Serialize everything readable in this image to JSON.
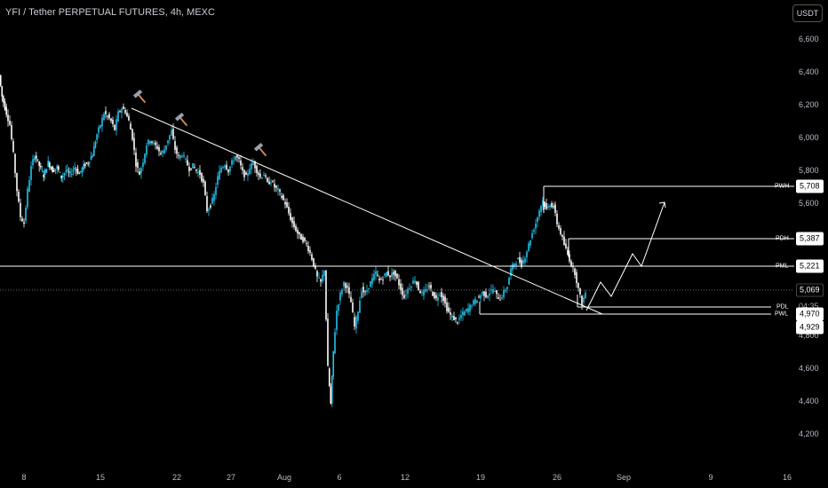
{
  "header": {
    "title": "YFI / Tether PERPETUAL FUTURES, 4h, MEXC",
    "currency": "USDT"
  },
  "y_axis": {
    "ticks": [
      "6,600",
      "6,400",
      "6,200",
      "6,000",
      "5,800",
      "5,600",
      "4,800",
      "4,600",
      "4,400",
      "4,200"
    ]
  },
  "x_axis": {
    "ticks": [
      "8",
      "15",
      "22",
      "27",
      "Aug",
      "6",
      "12",
      "19",
      "26",
      "Sep",
      "9",
      "16"
    ]
  },
  "levels": {
    "pwh": {
      "tag": "PWH",
      "value": "5,708"
    },
    "pdh": {
      "tag": "PDH",
      "value": "5,387"
    },
    "pml": {
      "tag": "PML",
      "value": "5,221"
    },
    "current": {
      "value": "5,069",
      "countdown": "04:35"
    },
    "pdl": {
      "tag": "PDL",
      "value": "4,970"
    },
    "pwl": {
      "tag": "PWL",
      "value": "4,929"
    }
  },
  "colors": {
    "bull": "#25c3ea",
    "bear": "#ffffff",
    "background": "#000000",
    "line": "#ffffff",
    "hammer": "#c8865a"
  },
  "chart_data": {
    "type": "candlestick",
    "series_close_path": [
      [
        0,
        6380
      ],
      [
        3,
        6250
      ],
      [
        8,
        6150
      ],
      [
        12,
        6080
      ],
      [
        16,
        5900
      ],
      [
        20,
        5680
      ],
      [
        24,
        5520
      ],
      [
        28,
        5480
      ],
      [
        32,
        5680
      ],
      [
        36,
        5820
      ],
      [
        40,
        5900
      ],
      [
        45,
        5830
      ],
      [
        50,
        5770
      ],
      [
        55,
        5850
      ],
      [
        60,
        5800
      ],
      [
        65,
        5820
      ],
      [
        70,
        5760
      ],
      [
        75,
        5800
      ],
      [
        80,
        5780
      ],
      [
        85,
        5820
      ],
      [
        90,
        5780
      ],
      [
        95,
        5830
      ],
      [
        100,
        5850
      ],
      [
        105,
        5900
      ],
      [
        110,
        6020
      ],
      [
        114,
        6080
      ],
      [
        118,
        6150
      ],
      [
        122,
        6130
      ],
      [
        126,
        6100
      ],
      [
        130,
        6050
      ],
      [
        134,
        6150
      ],
      [
        138,
        6180
      ],
      [
        142,
        6160
      ],
      [
        146,
        6100
      ],
      [
        150,
        6000
      ],
      [
        154,
        5840
      ],
      [
        158,
        5780
      ],
      [
        162,
        5860
      ],
      [
        166,
        5960
      ],
      [
        170,
        5990
      ],
      [
        174,
        5960
      ],
      [
        178,
        5940
      ],
      [
        182,
        5900
      ],
      [
        186,
        5930
      ],
      [
        190,
        5990
      ],
      [
        194,
        6040
      ],
      [
        198,
        5930
      ],
      [
        202,
        5880
      ],
      [
        206,
        5900
      ],
      [
        210,
        5860
      ],
      [
        214,
        5810
      ],
      [
        218,
        5830
      ],
      [
        222,
        5800
      ],
      [
        226,
        5780
      ],
      [
        230,
        5720
      ],
      [
        234,
        5560
      ],
      [
        238,
        5590
      ],
      [
        242,
        5650
      ],
      [
        246,
        5760
      ],
      [
        250,
        5820
      ],
      [
        254,
        5840
      ],
      [
        258,
        5800
      ],
      [
        262,
        5850
      ],
      [
        266,
        5890
      ],
      [
        270,
        5860
      ],
      [
        274,
        5790
      ],
      [
        278,
        5760
      ],
      [
        282,
        5820
      ],
      [
        286,
        5850
      ],
      [
        290,
        5800
      ],
      [
        294,
        5760
      ],
      [
        298,
        5780
      ],
      [
        302,
        5720
      ],
      [
        306,
        5740
      ],
      [
        310,
        5700
      ],
      [
        314,
        5680
      ],
      [
        318,
        5640
      ],
      [
        322,
        5600
      ],
      [
        326,
        5540
      ],
      [
        330,
        5480
      ],
      [
        334,
        5440
      ],
      [
        338,
        5400
      ],
      [
        342,
        5380
      ],
      [
        346,
        5350
      ],
      [
        350,
        5300
      ],
      [
        354,
        5230
      ],
      [
        358,
        5150
      ],
      [
        362,
        5120
      ],
      [
        366,
        5200
      ],
      [
        370,
        4600
      ],
      [
        373,
        4380
      ],
      [
        376,
        4700
      ],
      [
        380,
        4950
      ],
      [
        384,
        5050
      ],
      [
        388,
        5120
      ],
      [
        392,
        5080
      ],
      [
        396,
        5000
      ],
      [
        400,
        4850
      ],
      [
        404,
        4950
      ],
      [
        408,
        5080
      ],
      [
        412,
        5050
      ],
      [
        416,
        5100
      ],
      [
        420,
        5140
      ],
      [
        424,
        5180
      ],
      [
        428,
        5130
      ],
      [
        432,
        5150
      ],
      [
        436,
        5180
      ],
      [
        440,
        5160
      ],
      [
        444,
        5180
      ],
      [
        448,
        5140
      ],
      [
        452,
        5080
      ],
      [
        456,
        5030
      ],
      [
        460,
        5080
      ],
      [
        464,
        5110
      ],
      [
        468,
        5140
      ],
      [
        472,
        5080
      ],
      [
        476,
        5050
      ],
      [
        480,
        5070
      ],
      [
        484,
        5100
      ],
      [
        488,
        5050
      ],
      [
        492,
        5020
      ],
      [
        496,
        5060
      ],
      [
        500,
        5020
      ],
      [
        504,
        4960
      ],
      [
        508,
        4920
      ],
      [
        512,
        4900
      ],
      [
        516,
        4880
      ],
      [
        520,
        4920
      ],
      [
        524,
        4940
      ],
      [
        528,
        4960
      ],
      [
        532,
        4990
      ],
      [
        536,
        5010
      ],
      [
        540,
        5030
      ],
      [
        544,
        5060
      ],
      [
        548,
        5040
      ],
      [
        552,
        5060
      ],
      [
        556,
        5080
      ],
      [
        560,
        5040
      ],
      [
        564,
        5020
      ],
      [
        568,
        5060
      ],
      [
        572,
        5100
      ],
      [
        576,
        5200
      ],
      [
        580,
        5240
      ],
      [
        584,
        5260
      ],
      [
        588,
        5230
      ],
      [
        592,
        5280
      ],
      [
        596,
        5350
      ],
      [
        600,
        5420
      ],
      [
        604,
        5480
      ],
      [
        608,
        5560
      ],
      [
        612,
        5620
      ],
      [
        616,
        5560
      ],
      [
        620,
        5600
      ],
      [
        624,
        5580
      ],
      [
        628,
        5480
      ],
      [
        632,
        5420
      ],
      [
        636,
        5350
      ],
      [
        640,
        5290
      ],
      [
        644,
        5230
      ],
      [
        648,
        5180
      ],
      [
        652,
        5080
      ],
      [
        656,
        4990
      ],
      [
        660,
        5060
      ]
    ]
  }
}
